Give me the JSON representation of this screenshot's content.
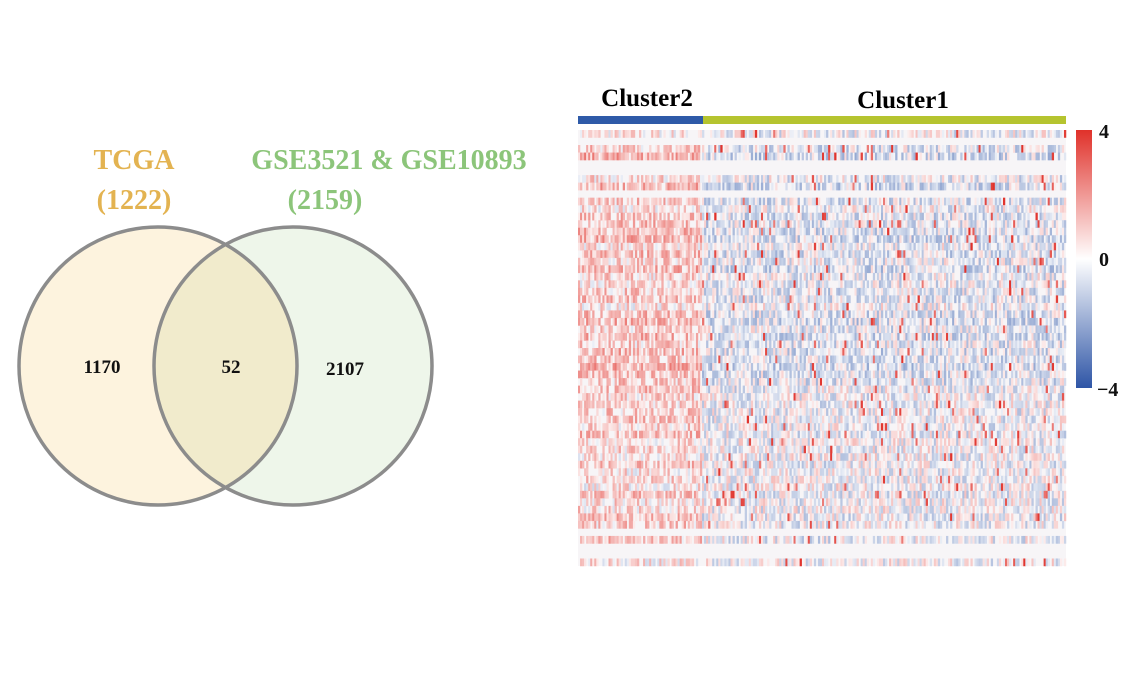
{
  "chart_data": [
    {
      "type": "venn",
      "sets": [
        {
          "name": "TCGA",
          "size_label": "(1222)",
          "size": 1222,
          "color": "#E3B351",
          "fill": "#FDF3DE"
        },
        {
          "name": "GSE3521 & GSE10893",
          "size_label": "(2159)",
          "size": 2159,
          "color": "#8CC57A",
          "fill": "#EEF6EA"
        }
      ],
      "regions": {
        "only_a": 1170,
        "intersection": 52,
        "only_b": 2107
      },
      "intersection_fill": "#F1EBCC",
      "outline_color": "#8C8C8C"
    },
    {
      "type": "heatmap",
      "clusters": [
        {
          "name": "Cluster2",
          "color": "#2E5AA8",
          "fraction": 0.256
        },
        {
          "name": "Cluster1",
          "color": "#B5C42F",
          "fraction": 0.744
        }
      ],
      "colorbar": {
        "ticks": [
          "4",
          "0",
          "−4"
        ],
        "min": -4,
        "max": 4,
        "high_color": "#E0312A",
        "mid_color": "#FFFFFF",
        "low_color": "#2E55A6"
      }
    }
  ]
}
